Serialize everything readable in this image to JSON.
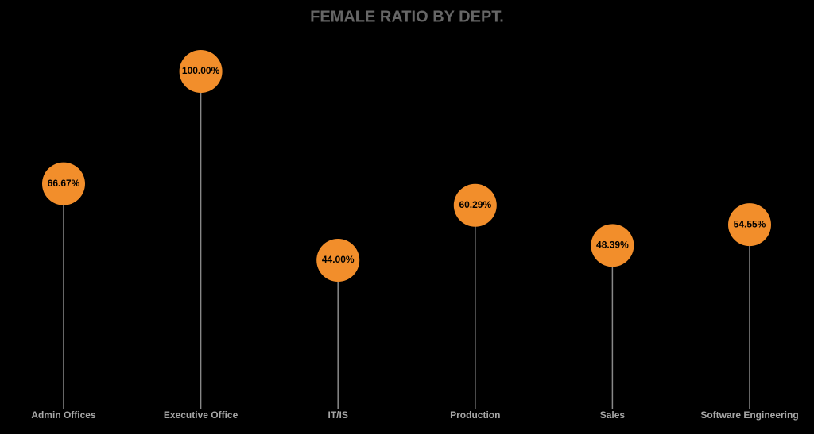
{
  "chart_data": {
    "type": "lollipop",
    "title": "FEMALE RATIO BY DEPT.",
    "categories": [
      "Admin Offices",
      "Executive Office",
      "IT/IS",
      "Production",
      "Sales",
      "Software Engineering"
    ],
    "values": [
      66.67,
      100,
      44,
      60.29,
      48.39,
      54.55
    ],
    "value_labels": [
      "66.67%",
      "100.00%",
      "44.00%",
      "60.29%",
      "48.39%",
      "54.55%"
    ],
    "color": "#f28e2b"
  }
}
